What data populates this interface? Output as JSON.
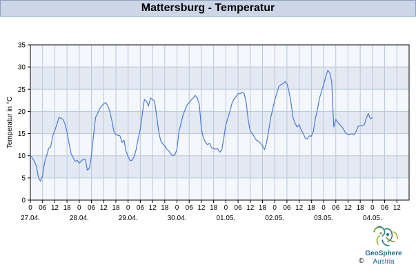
{
  "chart_data": {
    "type": "line",
    "title": "Mattersburg - Temperatur",
    "ylabel": "Temperatur in °C",
    "xlabel": "",
    "ylim": [
      0,
      35
    ],
    "yticks": [
      0,
      5,
      10,
      15,
      20,
      25,
      30,
      35
    ],
    "x_unit_hours": true,
    "xlim_hours": [
      0,
      186
    ],
    "hour_ticks": [
      {
        "h": 0,
        "label": "0"
      },
      {
        "h": 6,
        "label": "06"
      },
      {
        "h": 12,
        "label": "12"
      },
      {
        "h": 18,
        "label": "18"
      },
      {
        "h": 24,
        "label": "0"
      },
      {
        "h": 30,
        "label": "06"
      },
      {
        "h": 36,
        "label": "12"
      },
      {
        "h": 42,
        "label": "18"
      },
      {
        "h": 48,
        "label": "0"
      },
      {
        "h": 54,
        "label": "06"
      },
      {
        "h": 60,
        "label": "12"
      },
      {
        "h": 66,
        "label": "18"
      },
      {
        "h": 72,
        "label": "0"
      },
      {
        "h": 78,
        "label": "06"
      },
      {
        "h": 84,
        "label": "12"
      },
      {
        "h": 90,
        "label": "18"
      },
      {
        "h": 96,
        "label": "0"
      },
      {
        "h": 102,
        "label": "06"
      },
      {
        "h": 108,
        "label": "12"
      },
      {
        "h": 114,
        "label": "18"
      },
      {
        "h": 120,
        "label": "0"
      },
      {
        "h": 126,
        "label": "06"
      },
      {
        "h": 132,
        "label": "12"
      },
      {
        "h": 138,
        "label": "18"
      },
      {
        "h": 144,
        "label": "0"
      },
      {
        "h": 150,
        "label": "06"
      },
      {
        "h": 156,
        "label": "12"
      },
      {
        "h": 162,
        "label": "18"
      },
      {
        "h": 168,
        "label": "0"
      },
      {
        "h": 174,
        "label": "06"
      },
      {
        "h": 180,
        "label": "12"
      }
    ],
    "date_labels": [
      {
        "h": 0,
        "label": "27.04."
      },
      {
        "h": 24,
        "label": "28.04."
      },
      {
        "h": 48,
        "label": "29.04."
      },
      {
        "h": 72,
        "label": "30.04."
      },
      {
        "h": 96,
        "label": "01.05."
      },
      {
        "h": 120,
        "label": "02.05."
      },
      {
        "h": 144,
        "label": "03.05."
      },
      {
        "h": 168,
        "label": "04.05."
      }
    ],
    "series": [
      {
        "color": "#4a79d8",
        "points": [
          [
            0,
            10.0
          ],
          [
            1,
            9.5
          ],
          [
            2,
            8.7
          ],
          [
            3,
            7.6
          ],
          [
            4,
            5.0
          ],
          [
            5,
            4.3
          ],
          [
            6,
            5.5
          ],
          [
            7,
            8.5
          ],
          [
            8,
            10.0
          ],
          [
            9,
            11.7
          ],
          [
            10,
            12.0
          ],
          [
            11,
            14.5
          ],
          [
            12,
            15.7
          ],
          [
            13,
            17.0
          ],
          [
            14,
            18.6
          ],
          [
            15,
            18.5
          ],
          [
            16,
            18.2
          ],
          [
            17,
            17.2
          ],
          [
            18,
            15.3
          ],
          [
            19,
            12.8
          ],
          [
            20,
            10.5
          ],
          [
            21,
            9.6
          ],
          [
            22,
            8.7
          ],
          [
            23,
            9.0
          ],
          [
            24,
            8.3
          ],
          [
            25,
            8.8
          ],
          [
            26,
            9.2
          ],
          [
            27,
            9.2
          ],
          [
            28,
            6.7
          ],
          [
            29,
            7.2
          ],
          [
            30,
            10.0
          ],
          [
            31,
            14.5
          ],
          [
            32,
            18.6
          ],
          [
            33,
            19.5
          ],
          [
            34,
            20.5
          ],
          [
            35,
            21.2
          ],
          [
            36,
            21.7
          ],
          [
            37,
            22.0
          ],
          [
            38,
            21.3
          ],
          [
            39,
            20.0
          ],
          [
            40,
            18.0
          ],
          [
            41,
            15.5
          ],
          [
            42,
            14.8
          ],
          [
            43,
            14.6
          ],
          [
            44,
            14.5
          ],
          [
            45,
            13.0
          ],
          [
            46,
            13.5
          ],
          [
            47,
            11.0
          ],
          [
            48,
            9.8
          ],
          [
            49,
            8.9
          ],
          [
            50,
            9.0
          ],
          [
            51,
            9.8
          ],
          [
            52,
            11.5
          ],
          [
            53,
            14.0
          ],
          [
            54,
            16.0
          ],
          [
            55,
            19.5
          ],
          [
            56,
            22.7
          ],
          [
            57,
            22.3
          ],
          [
            58,
            21.2
          ],
          [
            59,
            23.0
          ],
          [
            60,
            22.7
          ],
          [
            61,
            22.3
          ],
          [
            62,
            19.0
          ],
          [
            63,
            15.5
          ],
          [
            64,
            13.4
          ],
          [
            65,
            12.7
          ],
          [
            66,
            12.2
          ],
          [
            67,
            11.5
          ],
          [
            68,
            11.1
          ],
          [
            69,
            10.4
          ],
          [
            70,
            10.0
          ],
          [
            71,
            10.2
          ],
          [
            72,
            11.5
          ],
          [
            73,
            15.5
          ],
          [
            74,
            17.3
          ],
          [
            75,
            19.2
          ],
          [
            76,
            20.4
          ],
          [
            77,
            21.5
          ],
          [
            78,
            22.0
          ],
          [
            79,
            22.6
          ],
          [
            80,
            23.0
          ],
          [
            81,
            23.6
          ],
          [
            82,
            23.0
          ],
          [
            83,
            21.5
          ],
          [
            84,
            16.0
          ],
          [
            85,
            14.0
          ],
          [
            86,
            13.0
          ],
          [
            87,
            12.5
          ],
          [
            88,
            12.8
          ],
          [
            89,
            11.8
          ],
          [
            90,
            11.6
          ],
          [
            91,
            11.5
          ],
          [
            92,
            11.6
          ],
          [
            93,
            10.8
          ],
          [
            94,
            11.3
          ],
          [
            95,
            14.0
          ],
          [
            96,
            17.0
          ],
          [
            97,
            18.5
          ],
          [
            98,
            20.0
          ],
          [
            99,
            21.8
          ],
          [
            100,
            22.8
          ],
          [
            101,
            23.3
          ],
          [
            102,
            24.0
          ],
          [
            103,
            24.0
          ],
          [
            104,
            24.3
          ],
          [
            105,
            24.0
          ],
          [
            106,
            22.0
          ],
          [
            107,
            18.0
          ],
          [
            108,
            15.5
          ],
          [
            109,
            15.0
          ],
          [
            110,
            14.2
          ],
          [
            111,
            13.5
          ],
          [
            112,
            13.3
          ],
          [
            113,
            12.8
          ],
          [
            114,
            12.2
          ],
          [
            115,
            11.4
          ],
          [
            116,
            13.0
          ],
          [
            117,
            15.5
          ],
          [
            118,
            18.5
          ],
          [
            119,
            20.5
          ],
          [
            120,
            22.5
          ],
          [
            121,
            24.0
          ],
          [
            122,
            25.6
          ],
          [
            123,
            26.0
          ],
          [
            124,
            26.2
          ],
          [
            125,
            26.7
          ],
          [
            126,
            26.3
          ],
          [
            127,
            24.5
          ],
          [
            128,
            22.0
          ],
          [
            129,
            18.5
          ],
          [
            130,
            17.3
          ],
          [
            131,
            16.5
          ],
          [
            132,
            17.0
          ],
          [
            133,
            15.8
          ],
          [
            134,
            15.0
          ],
          [
            135,
            14.0
          ],
          [
            136,
            13.8
          ],
          [
            137,
            14.5
          ],
          [
            138,
            14.4
          ],
          [
            139,
            15.5
          ],
          [
            140,
            18.5
          ],
          [
            141,
            20.5
          ],
          [
            142,
            23.0
          ],
          [
            143,
            24.5
          ],
          [
            144,
            26.0
          ],
          [
            145,
            27.7
          ],
          [
            146,
            29.2
          ],
          [
            147,
            28.8
          ],
          [
            148,
            26.7
          ],
          [
            149,
            16.5
          ],
          [
            150,
            18.2
          ],
          [
            151,
            17.5
          ],
          [
            152,
            17.0
          ],
          [
            153,
            16.5
          ],
          [
            154,
            15.8
          ],
          [
            155,
            15.0
          ],
          [
            156,
            14.8
          ],
          [
            157,
            14.8
          ],
          [
            158,
            15.0
          ],
          [
            159,
            14.7
          ],
          [
            160,
            15.5
          ],
          [
            161,
            16.7
          ],
          [
            162,
            16.7
          ],
          [
            163,
            16.8
          ],
          [
            164,
            17.0
          ],
          [
            165,
            18.5
          ],
          [
            166,
            19.5
          ],
          [
            167,
            18.3
          ],
          [
            168,
            18.6
          ]
        ]
      }
    ],
    "grid": true
  },
  "branding": {
    "logo_name": "GeoSphere",
    "logo_sub": "Austria",
    "copyright": "©"
  }
}
